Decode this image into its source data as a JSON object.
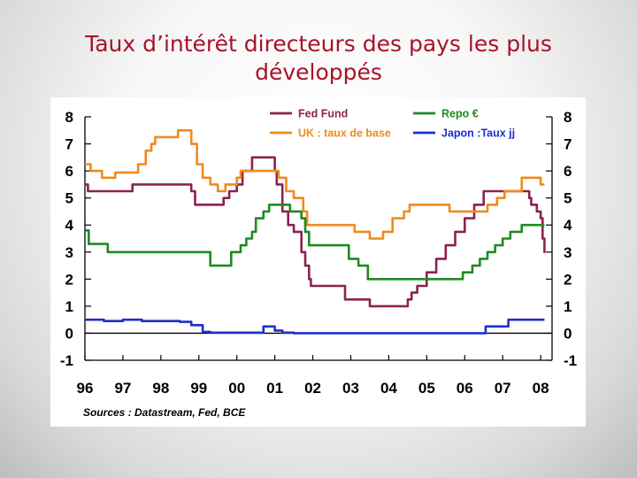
{
  "slide": {
    "title_line1": "Taux d’intérêt directeurs des pays les plus",
    "title_line2": "développés"
  },
  "colors": {
    "title": "#a8132a",
    "fed": "#8b2252",
    "uk": "#f08a1e",
    "repo": "#1f8a22",
    "japon": "#1f2fcc"
  },
  "chart_data": {
    "type": "line",
    "title": "",
    "xlabel": "",
    "ylabel": "",
    "ylim": [
      -1,
      8
    ],
    "xlim": [
      1996,
      2008.3
    ],
    "y_ticks": [
      "-1",
      "0",
      "1",
      "2",
      "3",
      "4",
      "5",
      "6",
      "7",
      "8"
    ],
    "x_ticks": [
      "96",
      "97",
      "98",
      "99",
      "00",
      "01",
      "02",
      "03",
      "04",
      "05",
      "06",
      "07",
      "08"
    ],
    "legend_position": "top",
    "source": "Sources : Datastream, Fed, BCE",
    "series": [
      {
        "name": "Fed Fund",
        "color": "#8b2252",
        "x": [
          1996,
          1996.08,
          1996.1,
          1997.2,
          1997.25,
          1998.7,
          1998.8,
          1998.9,
          1999.5,
          1999.65,
          1999.8,
          2000.0,
          2000.15,
          2000.4,
          2001.0,
          2001.05,
          2001.2,
          2001.35,
          2001.5,
          2001.7,
          2001.8,
          2001.9,
          2001.95,
          2002.85,
          2003.5,
          2004.5,
          2004.6,
          2004.75,
          2005.0,
          2005.25,
          2005.5,
          2005.75,
          2006.0,
          2006.25,
          2006.5,
          2007.7,
          2007.75,
          2007.9,
          2008.0,
          2008.05,
          2008.1,
          2008.12
        ],
        "values": [
          5.5,
          5.25,
          5.25,
          5.25,
          5.5,
          5.5,
          5.25,
          4.75,
          4.75,
          5.0,
          5.25,
          5.5,
          6.0,
          6.5,
          6.0,
          5.5,
          4.5,
          4.0,
          3.75,
          3.0,
          2.5,
          2.0,
          1.75,
          1.25,
          1.0,
          1.25,
          1.5,
          1.75,
          2.25,
          2.75,
          3.25,
          3.75,
          4.25,
          4.75,
          5.25,
          5.0,
          4.75,
          4.5,
          4.25,
          3.5,
          3.0,
          3.0
        ]
      },
      {
        "name": "UK : taux de base",
        "color": "#f08a1e",
        "x": [
          1996,
          1996.15,
          1996.45,
          1996.8,
          1997.4,
          1997.6,
          1997.75,
          1997.85,
          1998.45,
          1998.8,
          1998.95,
          1999.1,
          1999.3,
          1999.5,
          1999.7,
          2000.0,
          2000.1,
          2001.1,
          2001.3,
          2001.5,
          2001.75,
          2001.85,
          2003.1,
          2003.5,
          2003.85,
          2004.1,
          2004.4,
          2004.55,
          2005.6,
          2006.6,
          2006.85,
          2007.05,
          2007.5,
          2008.0,
          2008.1
        ],
        "values": [
          6.25,
          6.0,
          5.75,
          5.94,
          6.25,
          6.75,
          7.0,
          7.25,
          7.5,
          7.0,
          6.25,
          5.75,
          5.5,
          5.25,
          5.5,
          5.75,
          6.0,
          5.75,
          5.25,
          5.0,
          4.5,
          4.0,
          3.75,
          3.5,
          3.75,
          4.25,
          4.5,
          4.75,
          4.5,
          4.75,
          5.0,
          5.25,
          5.75,
          5.5,
          5.5
        ]
      },
      {
        "name": "Repo €",
        "color": "#1f8a22",
        "x": [
          1996,
          1996.1,
          1996.6,
          1999.05,
          1999.3,
          1999.85,
          2000.1,
          2000.25,
          2000.4,
          2000.5,
          2000.7,
          2000.85,
          2001.4,
          2001.7,
          2001.8,
          2001.9,
          2002.95,
          2003.2,
          2003.45,
          2005.95,
          2006.2,
          2006.4,
          2006.6,
          2006.8,
          2007.0,
          2007.2,
          2007.5,
          2008.1
        ],
        "values": [
          3.8,
          3.3,
          3.0,
          3.0,
          2.5,
          3.0,
          3.25,
          3.5,
          3.75,
          4.25,
          4.5,
          4.75,
          4.5,
          4.25,
          3.75,
          3.25,
          2.75,
          2.5,
          2.0,
          2.25,
          2.5,
          2.75,
          3.0,
          3.25,
          3.5,
          3.75,
          4.0,
          4.0
        ]
      },
      {
        "name": "Japon :Taux jj",
        "color": "#1f2fcc",
        "x": [
          1996,
          1996.5,
          1997.0,
          1997.5,
          1998.0,
          1998.5,
          1998.8,
          1999.1,
          1999.3,
          2000.0,
          2000.5,
          2000.7,
          2001.0,
          2001.2,
          2001.5,
          2006.4,
          2006.55,
          2007.05,
          2007.15,
          2008.1
        ],
        "values": [
          0.5,
          0.45,
          0.5,
          0.45,
          0.45,
          0.42,
          0.3,
          0.05,
          0.02,
          0.02,
          0.02,
          0.25,
          0.1,
          0.02,
          0.0,
          0.0,
          0.25,
          0.25,
          0.5,
          0.5
        ]
      }
    ]
  }
}
